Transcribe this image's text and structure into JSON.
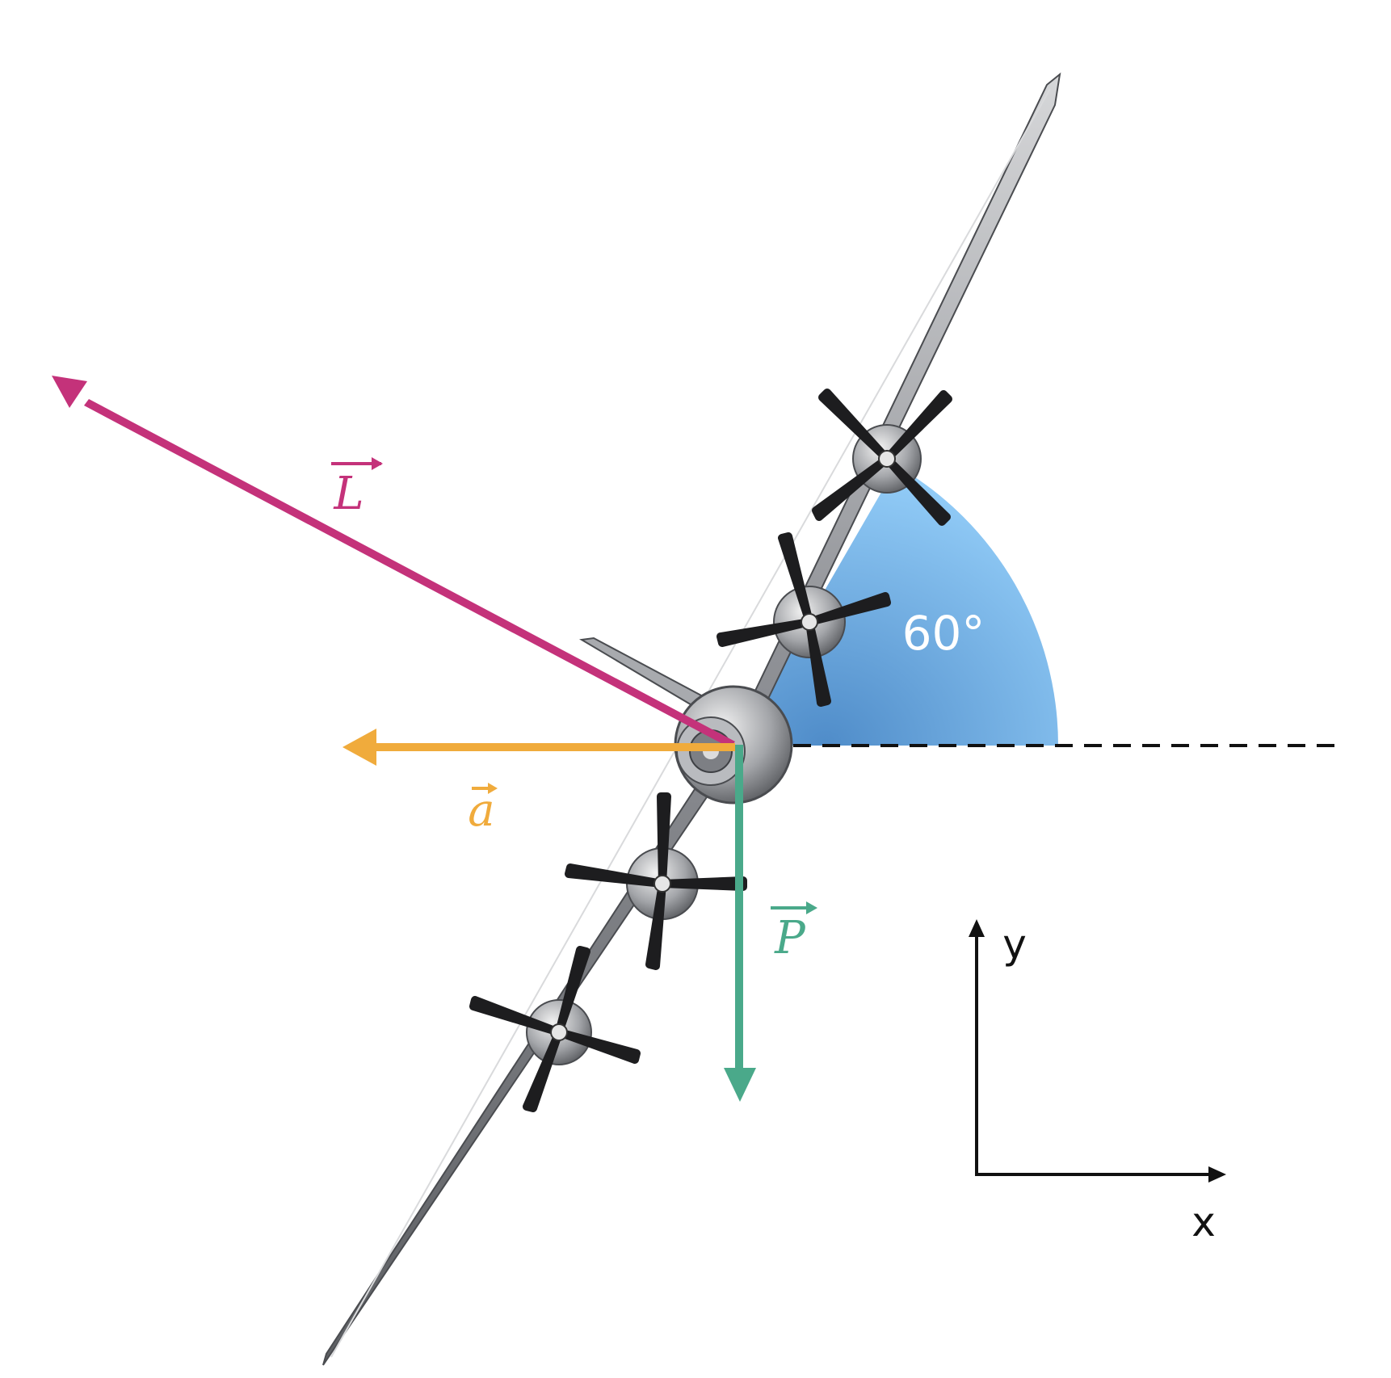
{
  "diagram": {
    "angle_label": "60°",
    "vectors": {
      "lift": {
        "symbol": "L",
        "color": "#c4327a"
      },
      "acceleration": {
        "symbol": "a",
        "color": "#f0ab3c"
      },
      "weight": {
        "symbol": "P",
        "color": "#4aa98a"
      }
    },
    "axes": {
      "x_label": "x",
      "y_label": "y"
    },
    "colors": {
      "angle_fill_light": "#93cdf8",
      "angle_fill_dark": "#4f8cc9",
      "dashed_line": "#111111",
      "airplane_body": "#8f9196"
    }
  }
}
